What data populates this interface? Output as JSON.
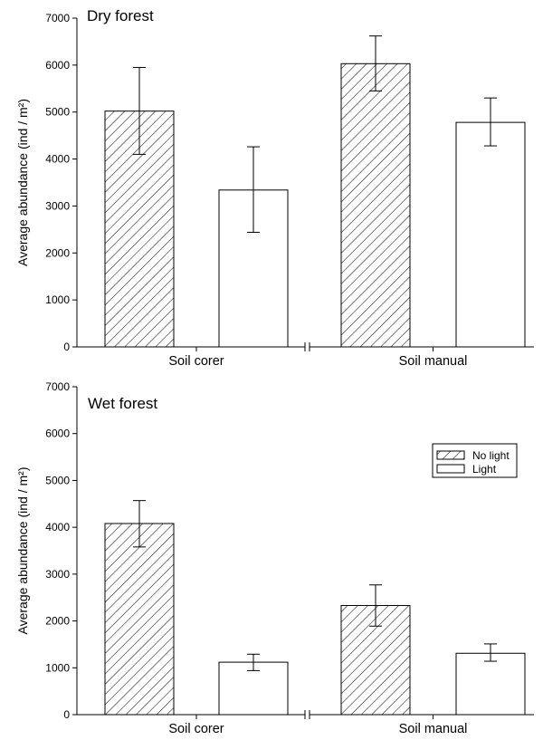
{
  "chart_data": [
    {
      "type": "bar",
      "title": "Dry forest",
      "xlabel": "",
      "ylabel": "Average abundance (ind / m²)",
      "ylim": [
        0,
        7000
      ],
      "yticks": [
        0,
        1000,
        2000,
        3000,
        4000,
        5000,
        6000,
        7000
      ],
      "categories": [
        "Soil corer",
        "Soil manual"
      ],
      "series": [
        {
          "name": "No light",
          "values": [
            5020,
            6030
          ],
          "err": [
            [
              4100,
              5950
            ],
            [
              5450,
              6620
            ]
          ]
        },
        {
          "name": "Light",
          "values": [
            3340,
            4780
          ],
          "err": [
            [
              2440,
              4260
            ],
            [
              4280,
              5300
            ]
          ]
        }
      ],
      "legend": "none"
    },
    {
      "type": "bar",
      "title": "Wet forest",
      "xlabel": "",
      "ylabel": "Average abundance (ind / m²)",
      "ylim": [
        0,
        7000
      ],
      "yticks": [
        0,
        1000,
        2000,
        3000,
        4000,
        5000,
        6000,
        7000
      ],
      "categories": [
        "Soil corer",
        "Soil manual"
      ],
      "series": [
        {
          "name": "No light",
          "values": [
            4080,
            2330
          ],
          "err": [
            [
              3580,
              4570
            ],
            [
              1890,
              2770
            ]
          ]
        },
        {
          "name": "Light",
          "values": [
            1120,
            1310
          ],
          "err": [
            [
              940,
              1290
            ],
            [
              1140,
              1510
            ]
          ]
        }
      ],
      "legend": "top-right"
    }
  ],
  "colors": {
    "no_light_fill": "hatched",
    "light_fill": "#ffffff",
    "stroke": "#000000"
  }
}
